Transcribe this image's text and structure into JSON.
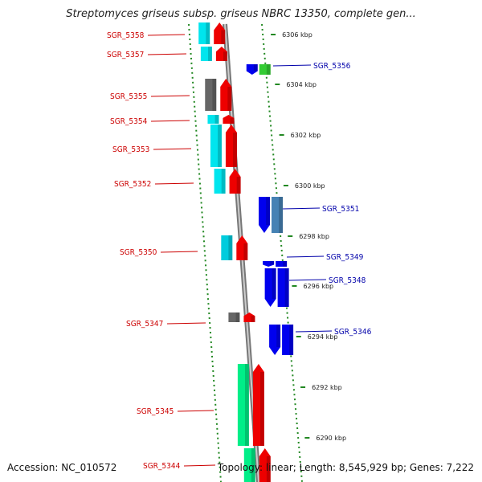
{
  "title": "Streptomyces griseus subsp. griseus NBRC 13350, complete gen...",
  "accession": "Accession: NC_010572",
  "summary": "Topology: linear; Length: 8,545,929 bp; Genes: 7,222",
  "colors": {
    "forward_label": "#cc0000",
    "reverse_label": "#0000aa",
    "forward_gene": "#ee0000",
    "reverse_gene": "#0000ee",
    "axis": "#888888",
    "tick": "#228822"
  },
  "scale_ticks": [
    {
      "label": "6306 kbp"
    },
    {
      "label": "6304 kbp"
    },
    {
      "label": "6302 kbp"
    },
    {
      "label": "6300 kbp"
    },
    {
      "label": "6298 kbp"
    },
    {
      "label": "6296 kbp"
    },
    {
      "label": "6294 kbp"
    },
    {
      "label": "6292 kbp"
    },
    {
      "label": "6290 kbp"
    }
  ],
  "genes": [
    {
      "label": "SGR_5358",
      "strand": "forward",
      "feature_color": "#00e5ee"
    },
    {
      "label": "SGR_5357",
      "strand": "forward",
      "feature_color": "#00e5ee"
    },
    {
      "label": "SGR_5356",
      "strand": "reverse",
      "feature_color": "#33cc33"
    },
    {
      "label": "SGR_5355",
      "strand": "forward",
      "feature_color": "#666666"
    },
    {
      "label": "SGR_5354",
      "strand": "forward",
      "feature_color": "#00e5ee"
    },
    {
      "label": "SGR_5353",
      "strand": "forward",
      "feature_color": "#00e5ee"
    },
    {
      "label": "SGR_5352",
      "strand": "forward",
      "feature_color": "#00e5ee"
    },
    {
      "label": "SGR_5351",
      "strand": "reverse",
      "feature_color": "#4682b4"
    },
    {
      "label": "SGR_5350",
      "strand": "forward",
      "feature_color": "#00ccdd"
    },
    {
      "label": "SGR_5349",
      "strand": "reverse",
      "feature_color": "#0000ee"
    },
    {
      "label": "SGR_5348",
      "strand": "reverse",
      "feature_color": "#0000ee"
    },
    {
      "label": "SGR_5347",
      "strand": "forward",
      "feature_color": "#666666"
    },
    {
      "label": "SGR_5346",
      "strand": "reverse",
      "feature_color": "#0000ee"
    },
    {
      "label": "SGR_5345",
      "strand": "forward",
      "feature_color": "#00ee88"
    },
    {
      "label": "SGR_5344",
      "strand": "forward",
      "feature_color": "#00ee88"
    }
  ]
}
